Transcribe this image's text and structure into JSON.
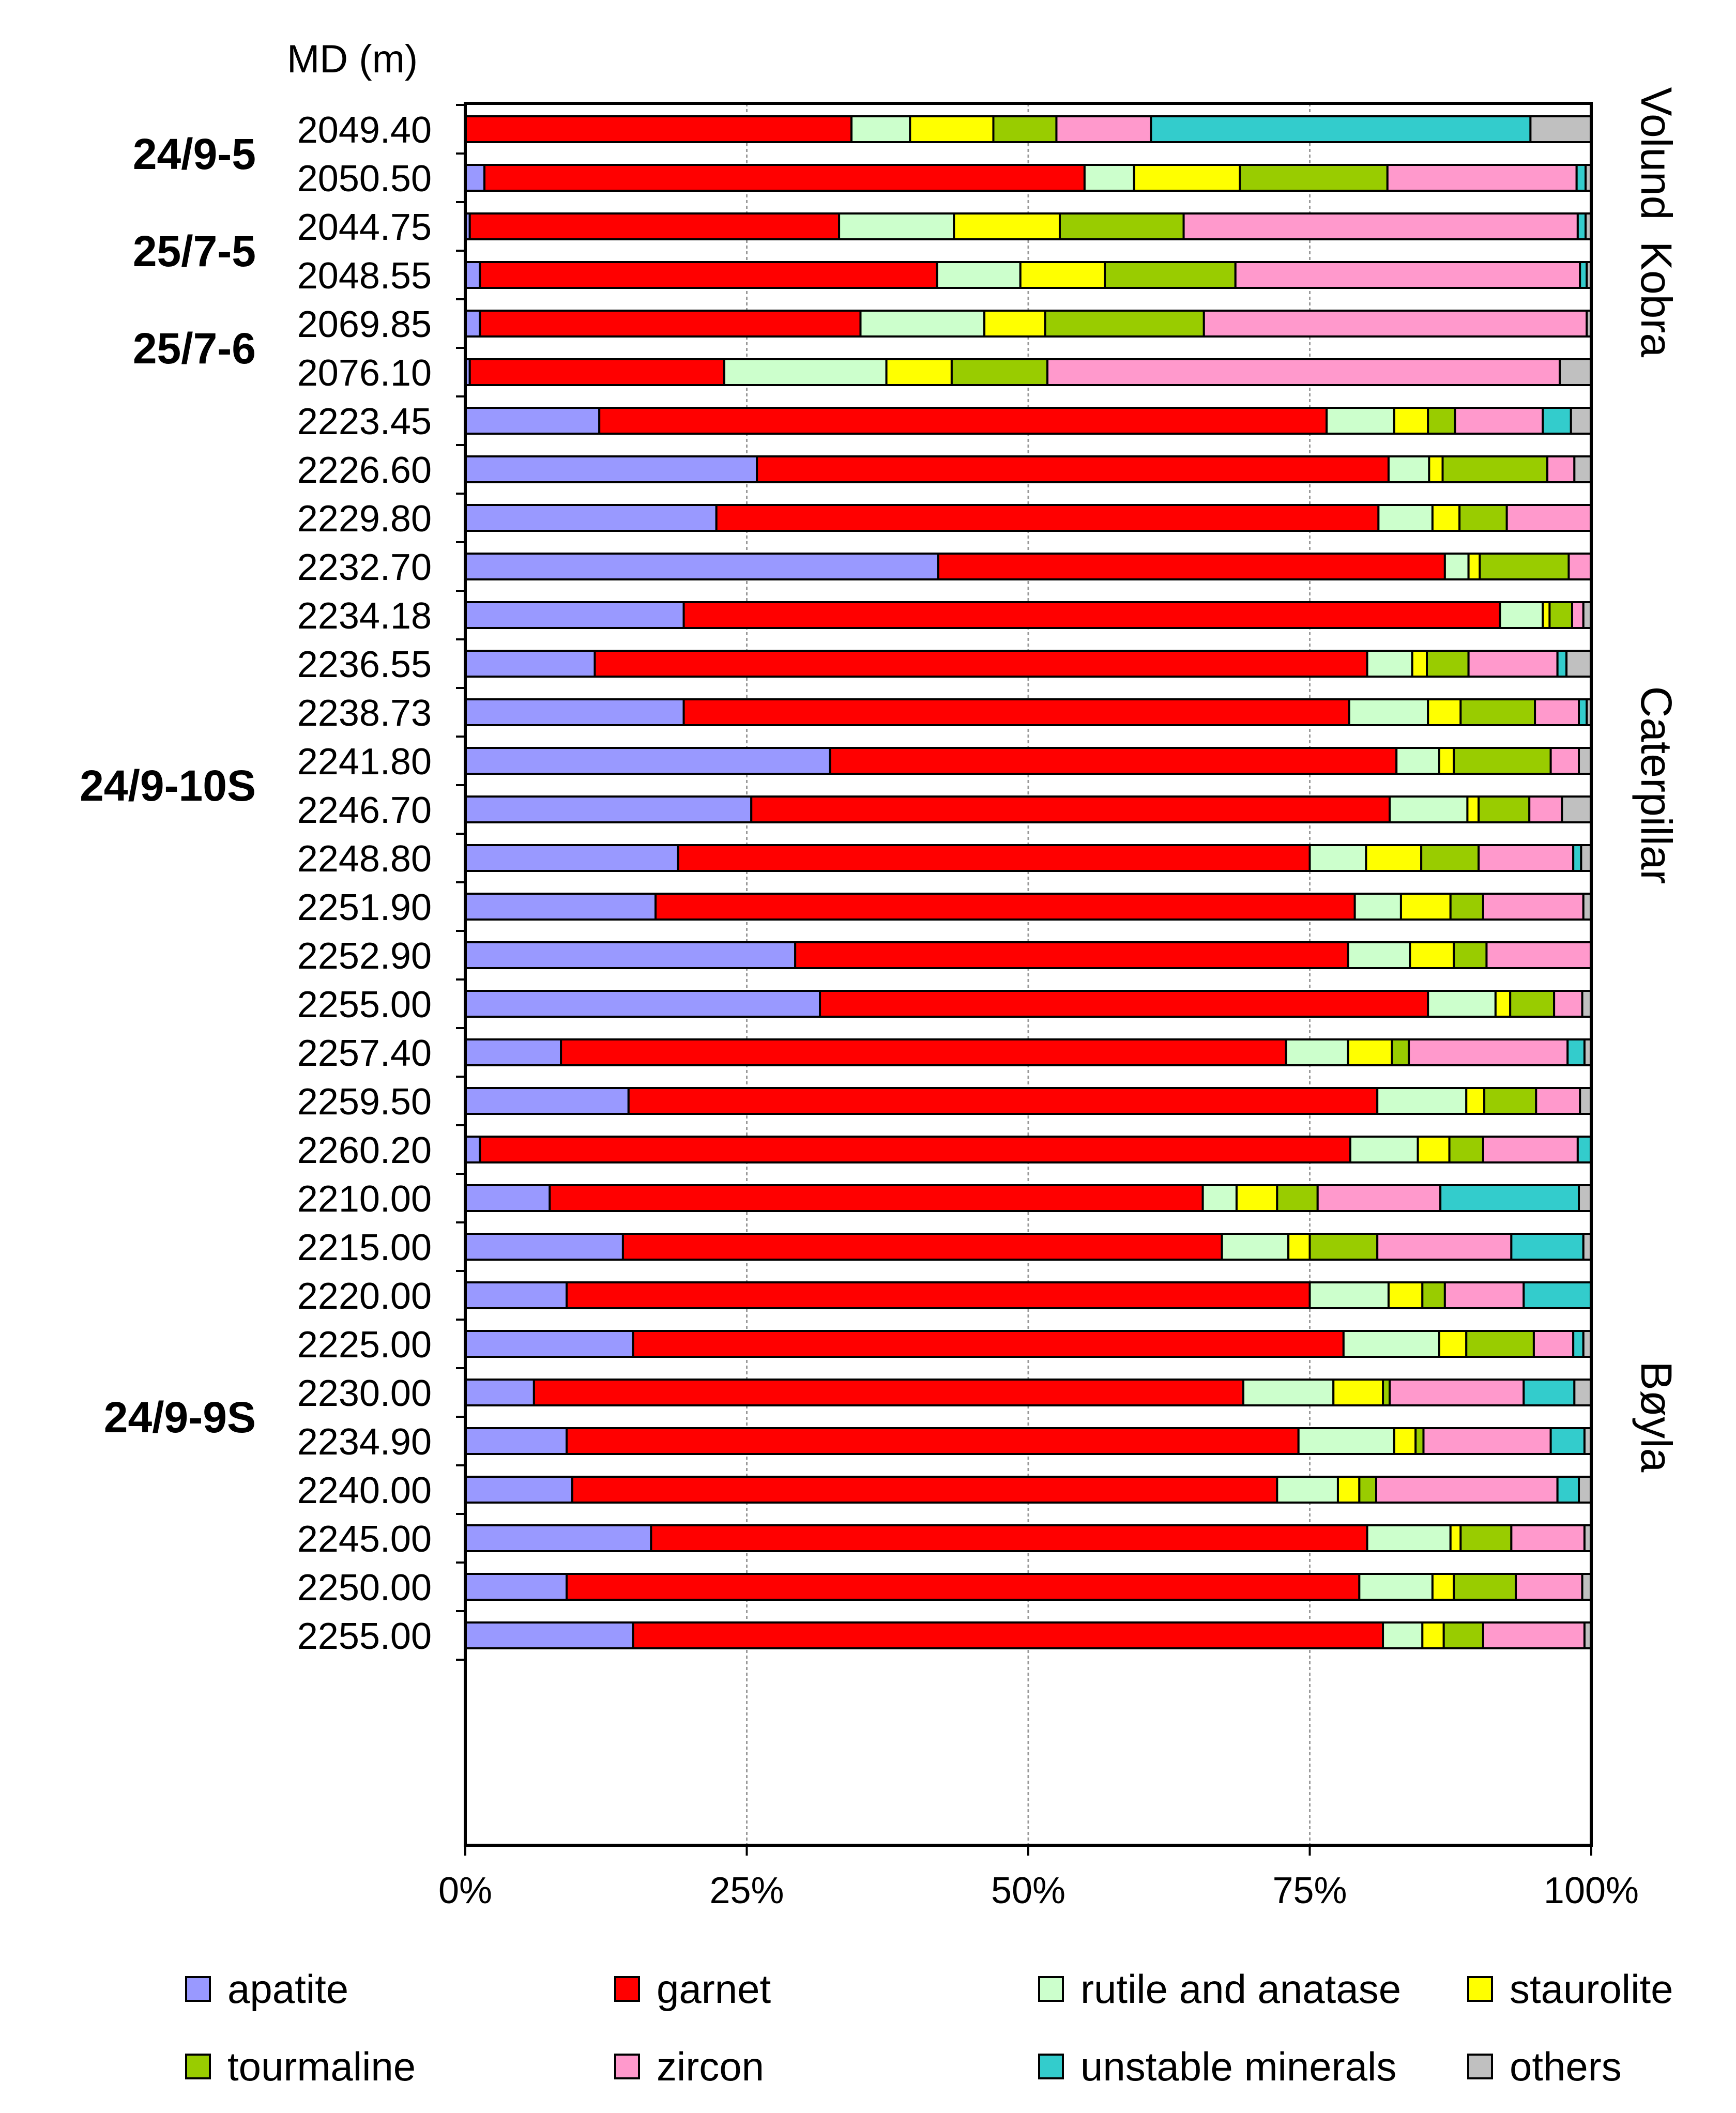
{
  "chart_data": {
    "type": "bar",
    "orientation": "horizontal",
    "stacking": "percent",
    "ylabel": "MD (m)",
    "xlim": [
      0,
      100
    ],
    "x_ticks": [
      "0%",
      "25%",
      "50%",
      "75%",
      "100%"
    ],
    "grid": true,
    "legend_position": "bottom",
    "series": [
      {
        "name": "apatite",
        "color": "#9999ff"
      },
      {
        "name": "garnet",
        "color": "#ff0000"
      },
      {
        "name": "rutile and anatase",
        "color": "#ccffcc"
      },
      {
        "name": "staurolite",
        "color": "#ffff00"
      },
      {
        "name": "tourmaline",
        "color": "#99cc00"
      },
      {
        "name": "zircon",
        "color": "#ff99cc"
      },
      {
        "name": "unstable minerals",
        "color": "#33cccc"
      },
      {
        "name": "others",
        "color": "#c0c0c0"
      }
    ],
    "groups": [
      {
        "well": "24/9-5",
        "field": "Volund",
        "samples": [
          {
            "md": "2049.40",
            "values": [
              0,
              34.3,
              5.2,
              7.4,
              5.6,
              8.4,
              33.7,
              5.4
            ]
          },
          {
            "md": "2050.50",
            "values": [
              1.7,
              53.3,
              4.4,
              9.4,
              13.1,
              16.8,
              0.8,
              0.5
            ]
          }
        ]
      },
      {
        "well": "25/7-5",
        "field": "Kobra",
        "samples": [
          {
            "md": "2044.75",
            "values": [
              0.4,
              32.8,
              10.2,
              9.4,
              11.0,
              35.0,
              0.7,
              0.5
            ]
          },
          {
            "md": "2048.55",
            "values": [
              1.3,
              40.6,
              7.4,
              7.5,
              11.6,
              30.6,
              0.6,
              0.4
            ]
          }
        ]
      },
      {
        "well": "25/7-6",
        "field": "Kobra",
        "samples": [
          {
            "md": "2069.85",
            "values": [
              1.3,
              33.8,
              11.0,
              5.4,
              14.1,
              34.0,
              0,
              0.4
            ]
          },
          {
            "md": "2076.10",
            "values": [
              0.4,
              22.6,
              14.4,
              5.8,
              8.5,
              45.5,
              0,
              2.8
            ]
          }
        ]
      },
      {
        "well": "24/9-10S",
        "field": "Caterpillar",
        "samples": [
          {
            "md": "2223.45",
            "values": [
              11.9,
              64.6,
              6.0,
              3.0,
              2.4,
              7.8,
              2.5,
              1.8
            ]
          },
          {
            "md": "2226.60",
            "values": [
              25.9,
              56.1,
              3.6,
              1.2,
              9.3,
              2.4,
              0,
              1.5
            ]
          },
          {
            "md": "2229.80",
            "values": [
              22.3,
              58.8,
              4.8,
              2.4,
              4.2,
              7.5,
              0,
              0
            ]
          },
          {
            "md": "2232.70",
            "values": [
              42.0,
              45.0,
              2.1,
              1.0,
              7.9,
              2.0,
              0,
              0
            ]
          },
          {
            "md": "2234.18",
            "values": [
              19.4,
              72.5,
              3.8,
              0.6,
              2.0,
              1.0,
              0,
              0.7
            ]
          },
          {
            "md": "2236.55",
            "values": [
              11.5,
              68.6,
              4.0,
              1.3,
              3.7,
              7.9,
              0.8,
              2.2
            ]
          },
          {
            "md": "2238.73",
            "values": [
              19.4,
              59.1,
              7.0,
              2.9,
              6.6,
              3.9,
              0.7,
              0.4
            ]
          },
          {
            "md": "2241.80",
            "values": [
              32.4,
              50.3,
              3.8,
              1.3,
              8.6,
              2.5,
              0,
              1.1
            ]
          },
          {
            "md": "2246.70",
            "values": [
              25.4,
              56.7,
              6.9,
              1.0,
              4.5,
              2.9,
              0,
              2.6
            ]
          },
          {
            "md": "2248.80",
            "values": [
              18.9,
              56.1,
              5.0,
              4.9,
              5.1,
              8.4,
              0.7,
              0.9
            ]
          },
          {
            "md": "2251.90",
            "values": [
              16.9,
              62.1,
              4.1,
              4.4,
              2.9,
              8.9,
              0,
              0.7
            ]
          },
          {
            "md": "2252.90",
            "values": [
              29.3,
              49.1,
              5.5,
              3.9,
              2.9,
              9.3,
              0,
              0
            ]
          },
          {
            "md": "2255.00",
            "values": [
              31.5,
              54.0,
              6.0,
              1.3,
              3.9,
              2.5,
              0,
              0.8
            ]
          },
          {
            "md": "2257.40",
            "values": [
              8.5,
              64.4,
              5.5,
              3.9,
              1.5,
              14.1,
              1.5,
              0.6
            ]
          },
          {
            "md": "2259.50",
            "values": [
              14.5,
              66.5,
              7.9,
              1.6,
              4.6,
              3.9,
              0,
              1.0
            ]
          },
          {
            "md": "2260.20",
            "values": [
              1.3,
              77.3,
              6.0,
              2.8,
              3.0,
              8.4,
              1.2,
              0
            ]
          }
        ]
      },
      {
        "well": "24/9-9S",
        "field": "Bøyla",
        "samples": [
          {
            "md": "2210.00",
            "values": [
              7.5,
              58.0,
              3.0,
              3.6,
              3.6,
              10.9,
              12.3,
              1.1
            ]
          },
          {
            "md": "2215.00",
            "values": [
              14.0,
              53.2,
              5.9,
              1.9,
              6.0,
              11.9,
              6.4,
              0.7
            ]
          },
          {
            "md": "2220.00",
            "values": [
              9.0,
              66.0,
              7.0,
              3.0,
              2.0,
              7.0,
              6.0,
              0
            ]
          },
          {
            "md": "2225.00",
            "values": [
              14.9,
              63.1,
              8.5,
              2.4,
              6.0,
              3.5,
              0.9,
              0.7
            ]
          },
          {
            "md": "2230.00",
            "values": [
              6.1,
              63.0,
              8.0,
              4.4,
              0.6,
              11.9,
              4.5,
              1.5
            ]
          },
          {
            "md": "2234.90",
            "values": [
              9.0,
              65.0,
              8.5,
              1.9,
              0.7,
              11.3,
              3.0,
              0.6
            ]
          },
          {
            "md": "2240.00",
            "values": [
              9.5,
              62.6,
              5.4,
              1.9,
              1.5,
              16.1,
              1.9,
              1.1
            ]
          },
          {
            "md": "2245.00",
            "values": [
              16.5,
              63.6,
              7.4,
              0.9,
              4.5,
              6.5,
              0,
              0.6
            ]
          },
          {
            "md": "2250.00",
            "values": [
              9.0,
              70.4,
              6.5,
              1.9,
              5.5,
              5.9,
              0,
              0.8
            ]
          },
          {
            "md": "2255.00",
            "values": [
              14.9,
              66.6,
              3.5,
              1.9,
              3.5,
              9.0,
              0,
              0.6
            ]
          }
        ]
      }
    ]
  }
}
